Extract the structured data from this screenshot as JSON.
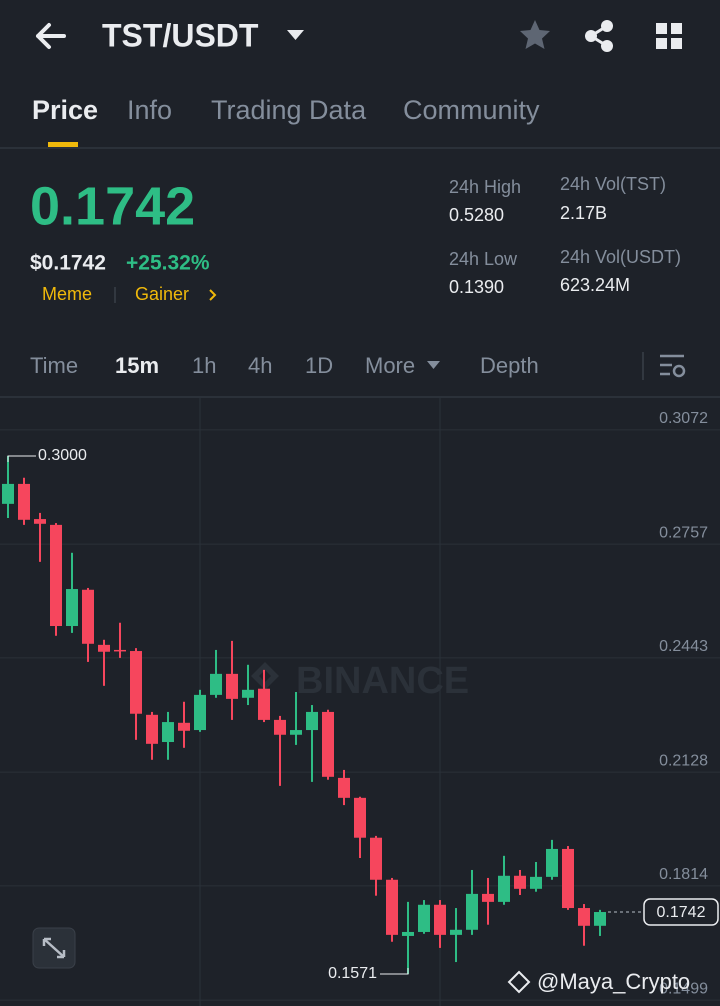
{
  "header": {
    "title": "TST/USDT"
  },
  "tabs": [
    "Price",
    "Info",
    "Trading Data",
    "Community"
  ],
  "price": {
    "last": "0.1742",
    "fiat": "$0.1742",
    "change": "+25.32%",
    "tags": [
      "Meme",
      "Gainer"
    ]
  },
  "stats": [
    {
      "label": "24h High",
      "value": "0.5280"
    },
    {
      "label": "24h Vol(TST)",
      "value": "2.17B"
    },
    {
      "label": "24h Low",
      "value": "0.1390"
    },
    {
      "label": "24h Vol(USDT)",
      "value": "623.24M"
    }
  ],
  "intervals": [
    "Time",
    "15m",
    "1h",
    "4h",
    "1D",
    "More",
    "Depth"
  ],
  "watermark": "BINANCE",
  "credit": "@Maya_Crypto",
  "chart_data": {
    "type": "candlestick",
    "open": [
      0.2868,
      0.2923,
      0.2826,
      0.281,
      0.2531,
      0.2631,
      0.2479,
      0.2465,
      0.2462,
      0.2286,
      0.2211,
      0.2264,
      0.2244,
      0.2341,
      0.2399,
      0.2333,
      0.2358,
      0.2272,
      0.2231,
      0.2244,
      0.2294,
      0.2112,
      0.2057,
      0.1947,
      0.1831,
      0.1676,
      0.1687,
      0.1762,
      0.1679,
      0.1693,
      0.1792,
      0.177,
      0.1842,
      0.1806,
      0.1839,
      0.1916,
      0.1753,
      0.1704
    ],
    "high": [
      0.3,
      0.294,
      0.2843,
      0.2815,
      0.2733,
      0.2636,
      0.2493,
      0.254,
      0.247,
      0.2294,
      0.2294,
      0.2322,
      0.2355,
      0.2465,
      0.249,
      0.2424,
      0.241,
      0.2283,
      0.2349,
      0.2313,
      0.23,
      0.2134,
      0.206,
      0.1952,
      0.1836,
      0.177,
      0.1775,
      0.1775,
      0.1753,
      0.1858,
      0.1836,
      0.1897,
      0.1858,
      0.188,
      0.1941,
      0.1924,
      0.1764,
      0.1748
    ],
    "low": [
      0.2829,
      0.281,
      0.2708,
      0.2504,
      0.2512,
      0.2432,
      0.2366,
      0.2443,
      0.2217,
      0.2162,
      0.2162,
      0.2195,
      0.2239,
      0.2333,
      0.2272,
      0.2313,
      0.2266,
      0.209,
      0.2203,
      0.2101,
      0.2107,
      0.2037,
      0.1891,
      0.1787,
      0.166,
      0.1571,
      0.1682,
      0.1643,
      0.1604,
      0.1679,
      0.1707,
      0.1762,
      0.1789,
      0.1798,
      0.1831,
      0.1748,
      0.1649,
      0.1676
    ],
    "close": [
      0.2923,
      0.2824,
      0.2813,
      0.2531,
      0.2633,
      0.2482,
      0.246,
      0.2462,
      0.2289,
      0.2206,
      0.2266,
      0.2242,
      0.2341,
      0.2399,
      0.233,
      0.2355,
      0.2272,
      0.2231,
      0.2244,
      0.2294,
      0.2115,
      0.2057,
      0.1947,
      0.1831,
      0.1679,
      0.1687,
      0.1762,
      0.1679,
      0.1693,
      0.1792,
      0.177,
      0.1842,
      0.1806,
      0.1839,
      0.1916,
      0.1753,
      0.1704,
      0.1742
    ],
    "up_color": "#2ebd85",
    "down_color": "#f6465d",
    "ylim": [
      0.148,
      0.316
    ],
    "yticks": [
      0.3072,
      0.2757,
      0.2443,
      0.2128,
      0.1814,
      0.1499
    ],
    "grid": true,
    "annotations": [
      {
        "value": 0.3,
        "label": "0.3000"
      },
      {
        "value": 0.1571,
        "label": "0.1571"
      }
    ],
    "last_price": {
      "value": 0.1742,
      "label": "0.1742"
    }
  }
}
